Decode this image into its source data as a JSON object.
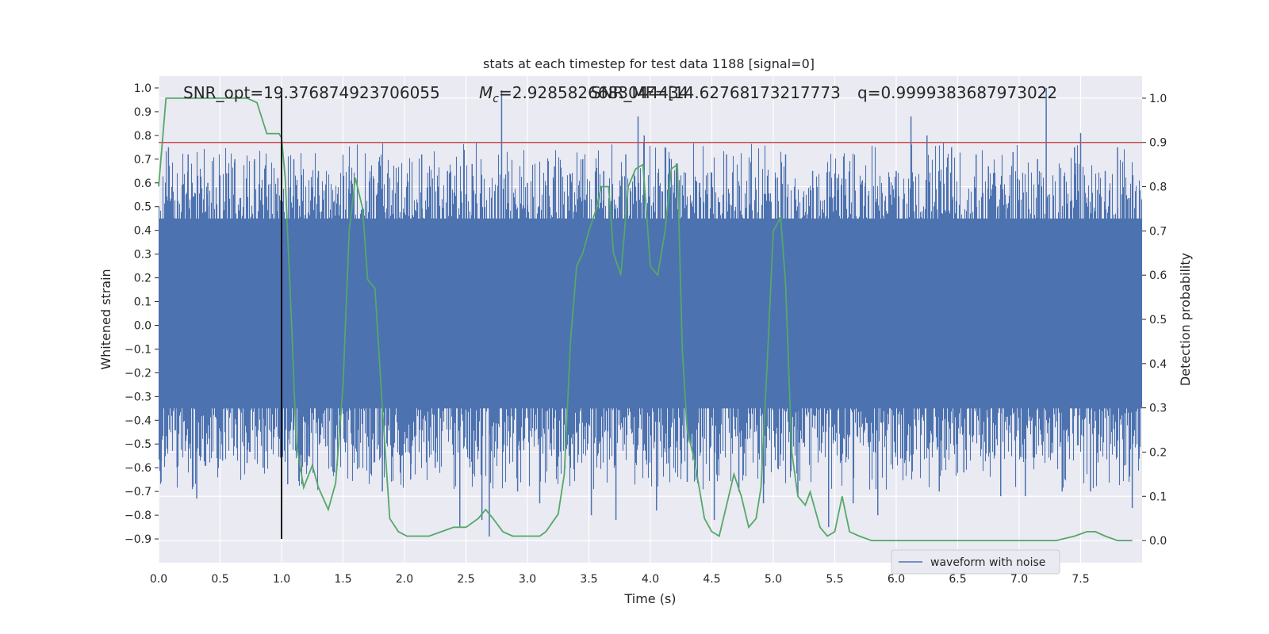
{
  "chart_data": {
    "type": "line",
    "title": "stats at each timestep for test data 1188 [signal=0]",
    "xlabel": "Time (s)",
    "ylabel_left": "Whitened strain",
    "ylabel_right": "Detection probability",
    "xlim": [
      0.0,
      8.0
    ],
    "ylim_left": [
      -1.0,
      1.05
    ],
    "ylim_right": [
      -0.05,
      1.05
    ],
    "xticks": [
      "0.0",
      "0.5",
      "1.0",
      "1.5",
      "2.0",
      "2.5",
      "3.0",
      "3.5",
      "4.0",
      "4.5",
      "5.0",
      "5.5",
      "6.0",
      "6.5",
      "7.0",
      "7.5"
    ],
    "yticks_left": [
      "1.0",
      "0.9",
      "0.8",
      "0.7",
      "0.6",
      "0.5",
      "0.4",
      "0.3",
      "0.2",
      "0.1",
      "0.0",
      "−0.1",
      "−0.2",
      "−0.3",
      "−0.4",
      "−0.5",
      "−0.6",
      "−0.7",
      "−0.8",
      "−0.9"
    ],
    "yticks_right": [
      "1.0",
      "0.9",
      "0.8",
      "0.7",
      "0.6",
      "0.5",
      "0.4",
      "0.3",
      "0.2",
      "0.1",
      "0.0"
    ],
    "grid": true,
    "legend": {
      "position": "lower-right",
      "entries": [
        "waveform with noise"
      ]
    },
    "annotations": {
      "snr_opt": "SNR_opt=19.376874923706055",
      "mc": "=2.9285826683044434",
      "mc_symbol": "M",
      "mc_sub": "c",
      "snr_mf": "SNR_MF=[14.62768173217773",
      "q": "q=0.9999383687973022"
    },
    "threshold_line": {
      "value": 0.9,
      "axis": "right",
      "color": "#c44e52"
    },
    "marker_line": {
      "x": 1.0,
      "color": "#000000"
    },
    "series": [
      {
        "name": "waveform with noise",
        "axis": "left",
        "color": "#4c72b0",
        "style": "dense noise",
        "core_range": [
          -0.35,
          0.45
        ],
        "spikes": [
          [
            0.02,
            -0.66
          ],
          [
            0.08,
            0.75
          ],
          [
            0.15,
            -0.6
          ],
          [
            0.24,
            0.72
          ],
          [
            0.31,
            -0.73
          ],
          [
            0.4,
            0.6
          ],
          [
            0.52,
            -0.57
          ],
          [
            0.62,
            0.7
          ],
          [
            0.72,
            -0.58
          ],
          [
            0.78,
            0.7
          ],
          [
            0.85,
            -0.6
          ],
          [
            0.97,
            0.62
          ],
          [
            1.05,
            -0.67
          ],
          [
            1.1,
            0.7
          ],
          [
            1.22,
            -0.55
          ],
          [
            1.3,
            0.65
          ],
          [
            1.43,
            -0.62
          ],
          [
            1.55,
            0.67
          ],
          [
            1.63,
            -0.6
          ],
          [
            1.72,
            0.62
          ],
          [
            1.82,
            -0.7
          ],
          [
            1.95,
            0.6
          ],
          [
            2.05,
            -0.65
          ],
          [
            2.14,
            0.72
          ],
          [
            2.25,
            -0.6
          ],
          [
            2.35,
            0.65
          ],
          [
            2.45,
            -0.85
          ],
          [
            2.55,
            0.68
          ],
          [
            2.63,
            -0.82
          ],
          [
            2.69,
            -0.89
          ],
          [
            2.79,
            0.99
          ],
          [
            2.92,
            -0.7
          ],
          [
            3.0,
            0.6
          ],
          [
            3.1,
            -0.75
          ],
          [
            3.22,
            0.67
          ],
          [
            3.35,
            -0.6
          ],
          [
            3.45,
            0.7
          ],
          [
            3.52,
            -0.8
          ],
          [
            3.62,
            0.65
          ],
          [
            3.72,
            -0.82
          ],
          [
            3.8,
            0.72
          ],
          [
            3.9,
            0.88
          ],
          [
            3.95,
            0.8
          ],
          [
            4.05,
            -0.78
          ],
          [
            4.12,
            0.75
          ],
          [
            4.3,
            -0.66
          ],
          [
            4.4,
            0.6
          ],
          [
            4.52,
            -0.82
          ],
          [
            4.62,
            0.72
          ],
          [
            4.72,
            -0.7
          ],
          [
            4.82,
            0.65
          ],
          [
            4.92,
            -0.75
          ],
          [
            5.02,
            0.62
          ],
          [
            5.1,
            0.72
          ],
          [
            5.2,
            -0.72
          ],
          [
            5.32,
            0.65
          ],
          [
            5.45,
            -0.85
          ],
          [
            5.52,
            0.62
          ],
          [
            5.65,
            -0.75
          ],
          [
            5.75,
            0.6
          ],
          [
            5.85,
            -0.8
          ],
          [
            6.0,
            0.65
          ],
          [
            6.12,
            0.88
          ],
          [
            6.25,
            0.8
          ],
          [
            6.35,
            -0.7
          ],
          [
            6.45,
            0.75
          ],
          [
            6.55,
            -0.62
          ],
          [
            6.65,
            0.72
          ],
          [
            6.75,
            0.67
          ],
          [
            6.85,
            -0.72
          ],
          [
            6.95,
            0.73
          ],
          [
            7.05,
            -0.72
          ],
          [
            7.15,
            0.7
          ],
          [
            7.22,
            1.0
          ],
          [
            7.35,
            -0.7
          ],
          [
            7.45,
            0.75
          ],
          [
            7.5,
            0.81
          ],
          [
            7.58,
            -0.7
          ],
          [
            7.7,
            0.65
          ],
          [
            7.8,
            0.75
          ],
          [
            7.92,
            -0.77
          ]
        ]
      },
      {
        "name": "",
        "axis": "right",
        "color": "#55a868",
        "x": [
          0.0,
          0.06,
          0.12,
          0.2,
          0.3,
          0.5,
          0.6,
          0.72,
          0.8,
          0.88,
          0.9,
          0.95,
          0.98,
          1.0,
          1.03,
          1.08,
          1.12,
          1.18,
          1.25,
          1.3,
          1.38,
          1.44,
          1.5,
          1.55,
          1.6,
          1.66,
          1.7,
          1.76,
          1.82,
          1.88,
          1.95,
          2.02,
          2.1,
          2.2,
          2.3,
          2.4,
          2.5,
          2.6,
          2.66,
          2.72,
          2.8,
          2.88,
          3.0,
          3.1,
          3.15,
          3.2,
          3.25,
          3.3,
          3.35,
          3.4,
          3.45,
          3.5,
          3.56,
          3.6,
          3.66,
          3.7,
          3.76,
          3.82,
          3.88,
          3.94,
          4.0,
          4.06,
          4.12,
          4.17,
          4.22,
          4.26,
          4.3,
          4.36,
          4.44,
          4.5,
          4.56,
          4.62,
          4.68,
          4.74,
          4.8,
          4.86,
          4.9,
          4.95,
          5.0,
          5.06,
          5.1,
          5.15,
          5.2,
          5.26,
          5.3,
          5.38,
          5.44,
          5.5,
          5.56,
          5.62,
          5.7,
          5.8,
          5.9,
          6.0,
          6.2,
          6.5,
          6.7,
          7.0,
          7.3,
          7.45,
          7.55,
          7.62,
          7.7,
          7.8,
          7.92
        ],
        "y": [
          0.8,
          1.0,
          1.0,
          1.0,
          1.0,
          1.0,
          1.0,
          1.0,
          0.99,
          0.92,
          0.92,
          0.92,
          0.92,
          0.91,
          0.82,
          0.5,
          0.22,
          0.12,
          0.17,
          0.12,
          0.07,
          0.13,
          0.35,
          0.7,
          0.82,
          0.75,
          0.59,
          0.57,
          0.3,
          0.05,
          0.02,
          0.01,
          0.01,
          0.01,
          0.02,
          0.03,
          0.03,
          0.05,
          0.07,
          0.05,
          0.02,
          0.01,
          0.01,
          0.01,
          0.02,
          0.04,
          0.06,
          0.15,
          0.45,
          0.62,
          0.65,
          0.7,
          0.75,
          0.8,
          0.8,
          0.65,
          0.6,
          0.8,
          0.84,
          0.85,
          0.62,
          0.6,
          0.7,
          0.84,
          0.85,
          0.43,
          0.25,
          0.18,
          0.05,
          0.02,
          0.01,
          0.08,
          0.15,
          0.1,
          0.03,
          0.05,
          0.12,
          0.4,
          0.7,
          0.73,
          0.58,
          0.2,
          0.1,
          0.08,
          0.11,
          0.03,
          0.01,
          0.02,
          0.1,
          0.02,
          0.01,
          0.0,
          0.0,
          0.0,
          0.0,
          0.0,
          0.0,
          0.0,
          0.0,
          0.01,
          0.02,
          0.02,
          0.01,
          0.0,
          0.0
        ]
      }
    ]
  }
}
